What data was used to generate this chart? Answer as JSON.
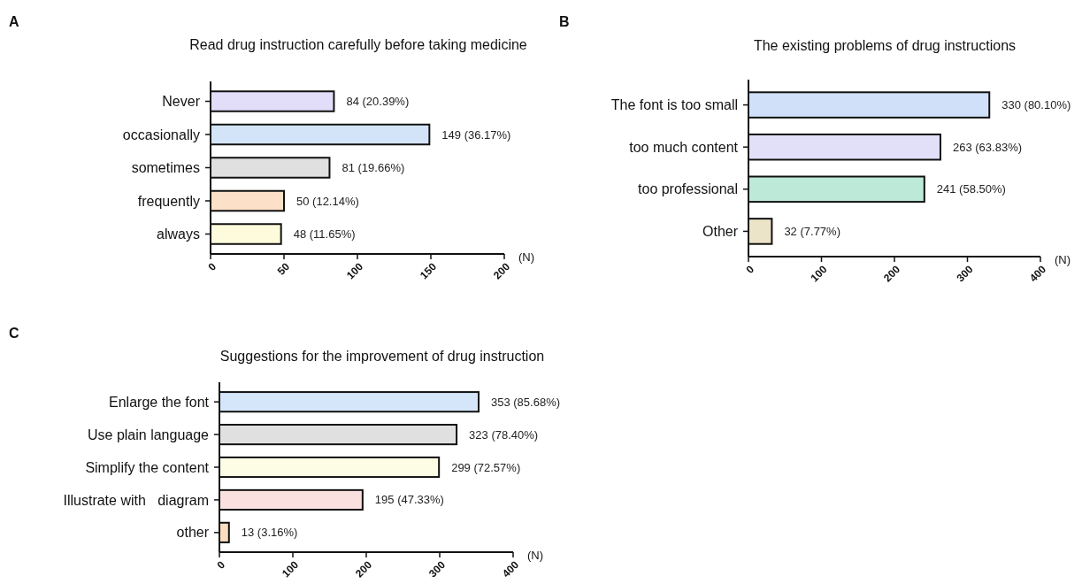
{
  "chart_data": [
    {
      "type": "bar",
      "orientation": "horizontal",
      "title": "Read drug instruction carefully before taking medicine",
      "xlabel": "(N)",
      "annotations": [
        "A"
      ],
      "categories": [
        "Never",
        "occasionally",
        "sometimes",
        "frequently",
        "always"
      ],
      "values": [
        84,
        149,
        81,
        50,
        48
      ],
      "value_labels": [
        "84 (20.39%)",
        "149 (36.17%)",
        "81 (19.66%)",
        "50 (12.14%)",
        "48 (11.65%)"
      ],
      "colors": [
        "#e2defa",
        "#d4e4f8",
        "#e0e0e0",
        "#fde0c8",
        "#fdfbdc"
      ],
      "xlim": [
        0,
        200
      ],
      "xticks": [
        0,
        50,
        100,
        150,
        200
      ]
    },
    {
      "type": "bar",
      "orientation": "horizontal",
      "title": "The existing problems of drug instructions",
      "xlabel": "(N)",
      "annotations": [
        "B"
      ],
      "categories": [
        "The font is too small",
        "too much content",
        "too professional",
        "Other"
      ],
      "values": [
        330,
        263,
        241,
        32
      ],
      "value_labels": [
        "330 (80.10%)",
        "263 (63.83%)",
        "241 (58.50%)",
        "32 (7.77%)"
      ],
      "colors": [
        "#cfe0f8",
        "#e2e0f8",
        "#bde9d8",
        "#ece4c8"
      ],
      "xlim": [
        0,
        400
      ],
      "xticks": [
        0,
        100,
        200,
        300,
        400
      ]
    },
    {
      "type": "bar",
      "orientation": "horizontal",
      "title": "Suggestions for the improvement of drug instruction",
      "xlabel": "(N)",
      "annotations": [
        "C"
      ],
      "categories": [
        "Enlarge the font",
        "Use plain language",
        "Simplify the content",
        "Illustrate with   diagram",
        "other"
      ],
      "values": [
        353,
        323,
        299,
        195,
        13
      ],
      "value_labels": [
        "353 (85.68%)",
        "323 (78.40%)",
        "299 (72.57%)",
        "195 (47.33%)",
        "13 (3.16%)"
      ],
      "colors": [
        "#d6e6fa",
        "#e0e0e0",
        "#fdfde6",
        "#fbe0e0",
        "#f9dfc0"
      ],
      "xlim": [
        0,
        400
      ],
      "xticks": [
        0,
        100,
        200,
        300,
        400
      ]
    }
  ]
}
